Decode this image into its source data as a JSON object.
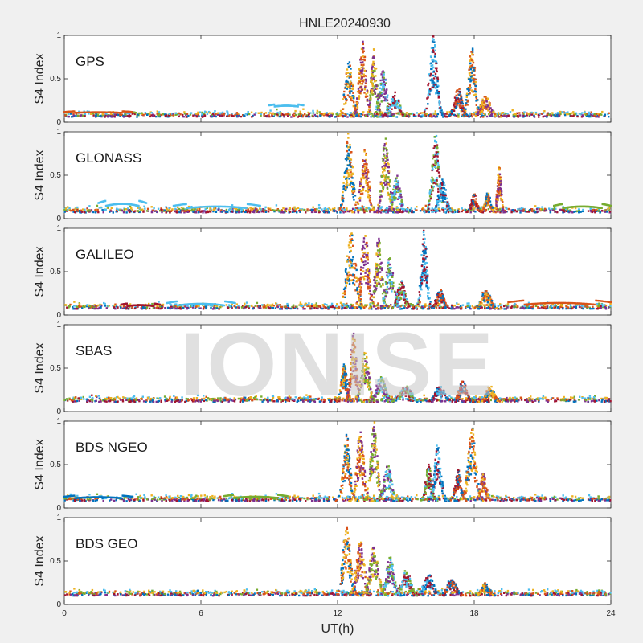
{
  "chart_data": {
    "type": "scatter",
    "title": "HNLE20240930",
    "xlabel": "UT(h)",
    "ylabel": "S4 Index",
    "xlim": [
      0,
      24
    ],
    "ylim": [
      0,
      1
    ],
    "x_ticks": [
      "0",
      "6",
      "12",
      "18",
      "24"
    ],
    "y_ticks": [
      "0",
      "0.5",
      "1"
    ],
    "watermark": "IONISE",
    "grid": false,
    "colors": [
      "#0072BD",
      "#D95319",
      "#EDB120",
      "#7E2F8E",
      "#77AC30",
      "#4DBEEE",
      "#A2142F"
    ],
    "panels": [
      {
        "name": "GPS",
        "baseline": 0.06,
        "bursts": [
          {
            "x": 12.5,
            "w": 0.4,
            "peak": 0.7
          },
          {
            "x": 13.1,
            "w": 0.35,
            "peak": 0.95
          },
          {
            "x": 13.6,
            "w": 0.3,
            "peak": 0.85
          },
          {
            "x": 14.0,
            "w": 0.4,
            "peak": 0.6
          },
          {
            "x": 14.5,
            "w": 0.5,
            "peak": 0.35
          },
          {
            "x": 16.2,
            "w": 0.4,
            "peak": 1.0
          },
          {
            "x": 17.3,
            "w": 0.4,
            "peak": 0.4
          },
          {
            "x": 17.9,
            "w": 0.35,
            "peak": 0.9
          },
          {
            "x": 18.5,
            "w": 0.5,
            "peak": 0.3
          }
        ],
        "arcs": [
          {
            "x0": 9.0,
            "x1": 10.5,
            "y": 0.17,
            "h": 0.04,
            "c": 5
          },
          {
            "x0": 0.0,
            "x1": 3.0,
            "y": 0.1,
            "h": 0.03,
            "c": 1
          }
        ]
      },
      {
        "name": "GLONASS",
        "baseline": 0.07,
        "bursts": [
          {
            "x": 12.5,
            "w": 0.4,
            "peak": 1.0
          },
          {
            "x": 13.2,
            "w": 0.4,
            "peak": 0.8
          },
          {
            "x": 14.1,
            "w": 0.35,
            "peak": 0.95
          },
          {
            "x": 14.6,
            "w": 0.4,
            "peak": 0.5
          },
          {
            "x": 16.3,
            "w": 0.35,
            "peak": 1.0
          },
          {
            "x": 16.6,
            "w": 0.4,
            "peak": 0.45
          },
          {
            "x": 18.0,
            "w": 0.3,
            "peak": 0.3
          },
          {
            "x": 18.6,
            "w": 0.3,
            "peak": 0.3
          },
          {
            "x": 19.1,
            "w": 0.2,
            "peak": 0.6
          }
        ],
        "arcs": [
          {
            "x0": 1.5,
            "x1": 3.6,
            "y": 0.12,
            "h": 0.1,
            "c": 5
          },
          {
            "x0": 4.8,
            "x1": 8.6,
            "y": 0.1,
            "h": 0.08,
            "c": 5
          },
          {
            "x0": 21.5,
            "x1": 24.0,
            "y": 0.1,
            "h": 0.08,
            "c": 4
          }
        ]
      },
      {
        "name": "GALILEO",
        "baseline": 0.07,
        "bursts": [
          {
            "x": 12.6,
            "w": 0.5,
            "peak": 0.95
          },
          {
            "x": 13.2,
            "w": 0.4,
            "peak": 0.95
          },
          {
            "x": 13.8,
            "w": 0.35,
            "peak": 0.9
          },
          {
            "x": 14.3,
            "w": 0.4,
            "peak": 0.7
          },
          {
            "x": 14.8,
            "w": 0.4,
            "peak": 0.4
          },
          {
            "x": 15.8,
            "w": 0.3,
            "peak": 1.0
          },
          {
            "x": 16.5,
            "w": 0.4,
            "peak": 0.3
          },
          {
            "x": 18.5,
            "w": 0.5,
            "peak": 0.3
          }
        ],
        "arcs": [
          {
            "x0": 4.5,
            "x1": 7.5,
            "y": 0.09,
            "h": 0.08,
            "c": 5
          },
          {
            "x0": 2.5,
            "x1": 4.2,
            "y": 0.09,
            "h": 0.05,
            "c": 6
          },
          {
            "x0": 19.5,
            "x1": 24.0,
            "y": 0.1,
            "h": 0.08,
            "c": 1
          }
        ]
      },
      {
        "name": "SBAS",
        "baseline": 0.11,
        "bursts": [
          {
            "x": 12.3,
            "w": 0.3,
            "peak": 0.55
          },
          {
            "x": 12.7,
            "w": 0.3,
            "peak": 0.9
          },
          {
            "x": 13.2,
            "w": 0.4,
            "peak": 0.7
          },
          {
            "x": 13.9,
            "w": 0.5,
            "peak": 0.4
          },
          {
            "x": 15.0,
            "w": 0.6,
            "peak": 0.3
          },
          {
            "x": 16.5,
            "w": 0.5,
            "peak": 0.3
          },
          {
            "x": 17.5,
            "w": 0.4,
            "peak": 0.35
          },
          {
            "x": 18.7,
            "w": 0.4,
            "peak": 0.3
          }
        ],
        "arcs": []
      },
      {
        "name": "BDS NGEO",
        "baseline": 0.08,
        "bursts": [
          {
            "x": 12.4,
            "w": 0.35,
            "peak": 0.85
          },
          {
            "x": 13.0,
            "w": 0.35,
            "peak": 0.9
          },
          {
            "x": 13.6,
            "w": 0.35,
            "peak": 1.0
          },
          {
            "x": 14.2,
            "w": 0.4,
            "peak": 0.5
          },
          {
            "x": 16.0,
            "w": 0.3,
            "peak": 0.5
          },
          {
            "x": 16.4,
            "w": 0.35,
            "peak": 0.75
          },
          {
            "x": 17.3,
            "w": 0.3,
            "peak": 0.45
          },
          {
            "x": 17.9,
            "w": 0.4,
            "peak": 0.95
          },
          {
            "x": 18.4,
            "w": 0.3,
            "peak": 0.4
          }
        ],
        "arcs": [
          {
            "x0": 0.0,
            "x1": 3.0,
            "y": 0.1,
            "h": 0.05,
            "c": 0
          },
          {
            "x0": 7.0,
            "x1": 9.8,
            "y": 0.1,
            "h": 0.06,
            "c": 4
          }
        ]
      },
      {
        "name": "BDS GEO",
        "baseline": 0.1,
        "bursts": [
          {
            "x": 12.4,
            "w": 0.4,
            "peak": 0.9
          },
          {
            "x": 13.0,
            "w": 0.4,
            "peak": 0.75
          },
          {
            "x": 13.6,
            "w": 0.45,
            "peak": 0.7
          },
          {
            "x": 14.3,
            "w": 0.4,
            "peak": 0.55
          },
          {
            "x": 15.0,
            "w": 0.5,
            "peak": 0.4
          },
          {
            "x": 16.0,
            "w": 0.5,
            "peak": 0.35
          },
          {
            "x": 17.0,
            "w": 0.5,
            "peak": 0.3
          },
          {
            "x": 18.5,
            "w": 0.4,
            "peak": 0.25
          }
        ],
        "arcs": []
      }
    ]
  }
}
